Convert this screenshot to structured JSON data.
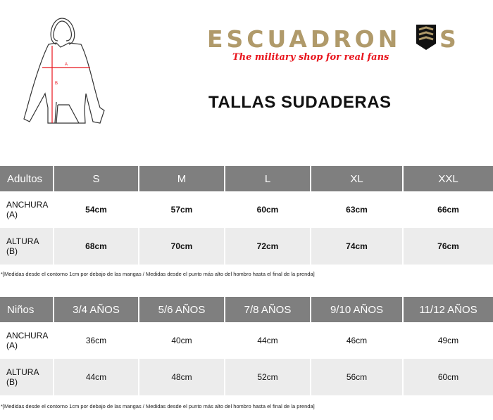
{
  "logo": {
    "brand": "ESCUADRONES",
    "slogan": "The military shop for real fans",
    "brand_color": "#b09a6a",
    "slogan_color": "#e8141c"
  },
  "diagram": {
    "label_a": "A",
    "label_b": "B"
  },
  "title": "TALLAS SUDADERAS",
  "adults": {
    "headers": [
      "Adultos",
      "S",
      "M",
      "L",
      "XL",
      "XXL"
    ],
    "rows": [
      {
        "label": "ANCHURA (A)",
        "values": [
          "54cm",
          "57cm",
          "60cm",
          "63cm",
          "66cm"
        ]
      },
      {
        "label": "ALTURA (B)",
        "values": [
          "68cm",
          "70cm",
          "72cm",
          "74cm",
          "76cm"
        ]
      }
    ],
    "note": "*[Medidas desde el contorno 1cm por debajo de las mangas / Medidas desde el punto más alto del hombro hasta el final de la prenda]"
  },
  "kids": {
    "headers": [
      "Niños",
      "3/4 AÑOS",
      "5/6 AÑOS",
      "7/8 AÑOS",
      "9/10 AÑOS",
      "11/12 AÑOS"
    ],
    "rows": [
      {
        "label": "ANCHURA (A)",
        "values": [
          "36cm",
          "40cm",
          "44cm",
          "46cm",
          "49cm"
        ]
      },
      {
        "label": "ALTURA (B)",
        "values": [
          "44cm",
          "48cm",
          "52cm",
          "56cm",
          "60cm"
        ]
      }
    ],
    "note": "*[Medidas desde el contorno 1cm por debajo de las mangas / Medidas desde el punto más alto del hombro hasta el final de la prenda]"
  }
}
